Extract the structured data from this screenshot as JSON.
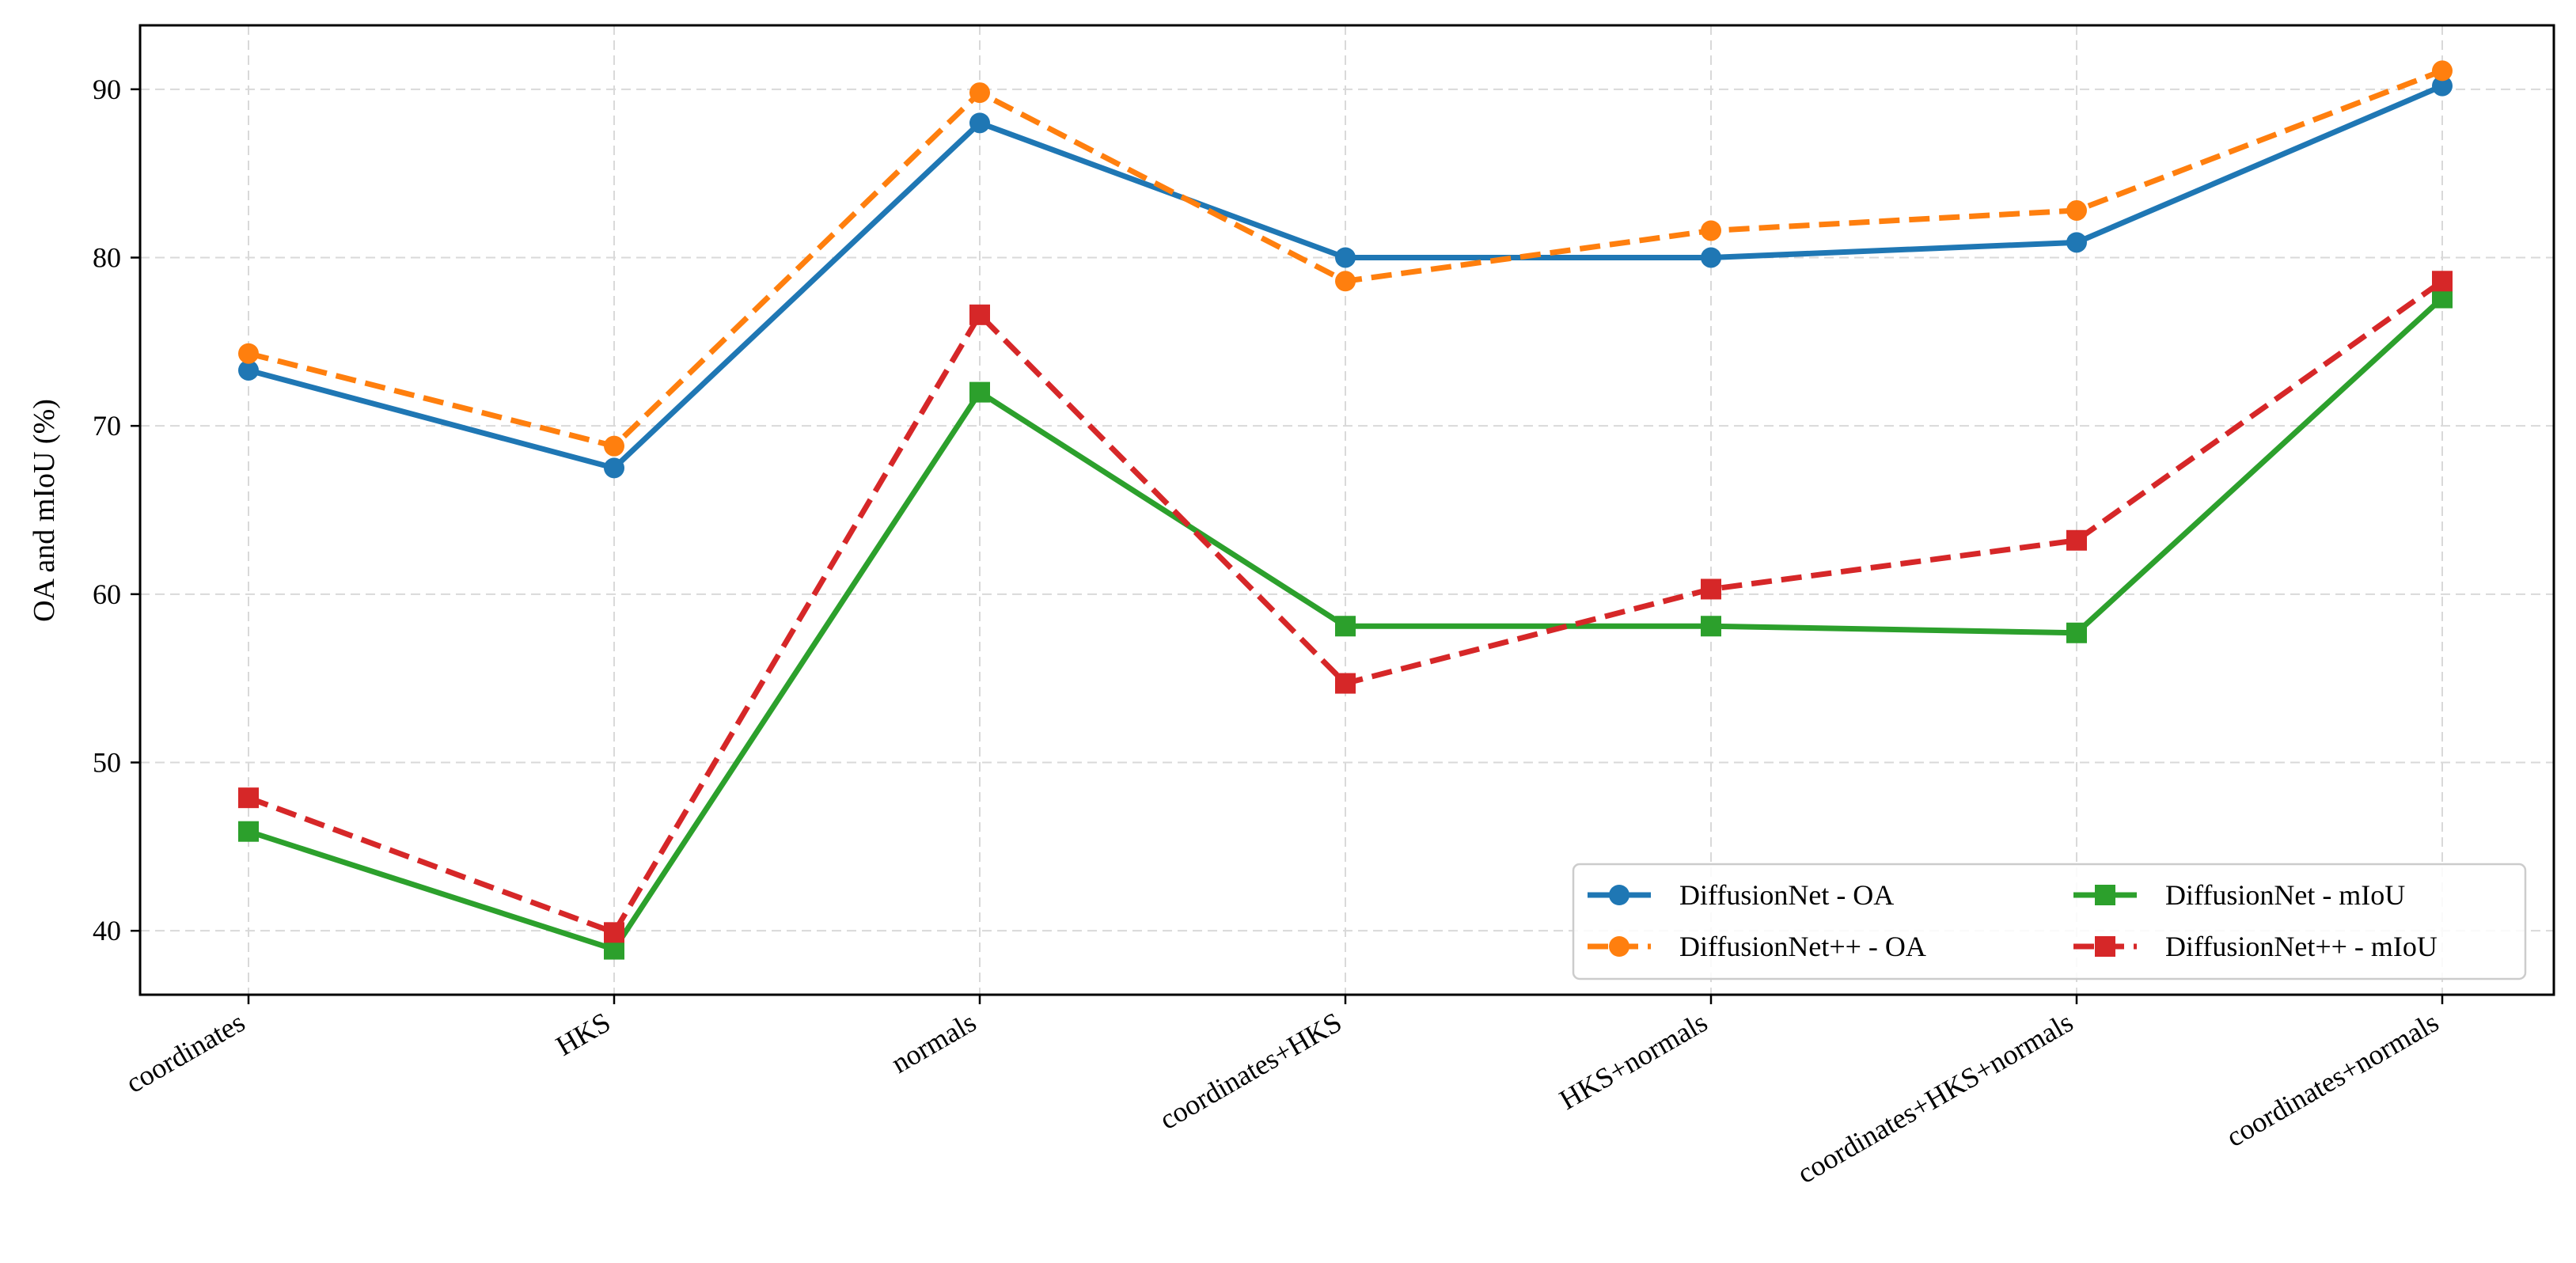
{
  "chart_data": {
    "type": "line",
    "title": "",
    "xlabel": "",
    "ylabel": "OA and mIoU (%)",
    "categories": [
      "coordinates",
      "HKS",
      "normals",
      "coordinates+HKS",
      "HKS+normals",
      "coordinates+HKS+normals",
      "coordinates+normals"
    ],
    "ylim": [
      36.2,
      93.8
    ],
    "yticks": [
      40,
      50,
      60,
      70,
      80,
      90
    ],
    "grid": true,
    "legend": {
      "placement": "lower-right",
      "columns": 2
    },
    "series": [
      {
        "name": "DiffusionNet - OA",
        "values": [
          73.3,
          67.5,
          88.0,
          80.0,
          80.0,
          80.9,
          90.2
        ],
        "color": "#1f77b4",
        "marker": "circle",
        "linestyle": "solid"
      },
      {
        "name": "DiffusionNet++ - OA",
        "values": [
          74.3,
          68.8,
          89.8,
          78.6,
          81.6,
          82.8,
          91.1
        ],
        "color": "#ff7f0e",
        "marker": "circle",
        "linestyle": "dashed"
      },
      {
        "name": "DiffusionNet - mIoU",
        "values": [
          45.9,
          38.9,
          72.0,
          58.1,
          58.1,
          57.7,
          77.6
        ],
        "color": "#2ca02c",
        "marker": "square",
        "linestyle": "solid"
      },
      {
        "name": "DiffusionNet++ - mIoU",
        "values": [
          47.9,
          39.9,
          76.6,
          54.7,
          60.3,
          63.2,
          78.6
        ],
        "color": "#d62728",
        "marker": "square",
        "linestyle": "dashed"
      }
    ]
  }
}
